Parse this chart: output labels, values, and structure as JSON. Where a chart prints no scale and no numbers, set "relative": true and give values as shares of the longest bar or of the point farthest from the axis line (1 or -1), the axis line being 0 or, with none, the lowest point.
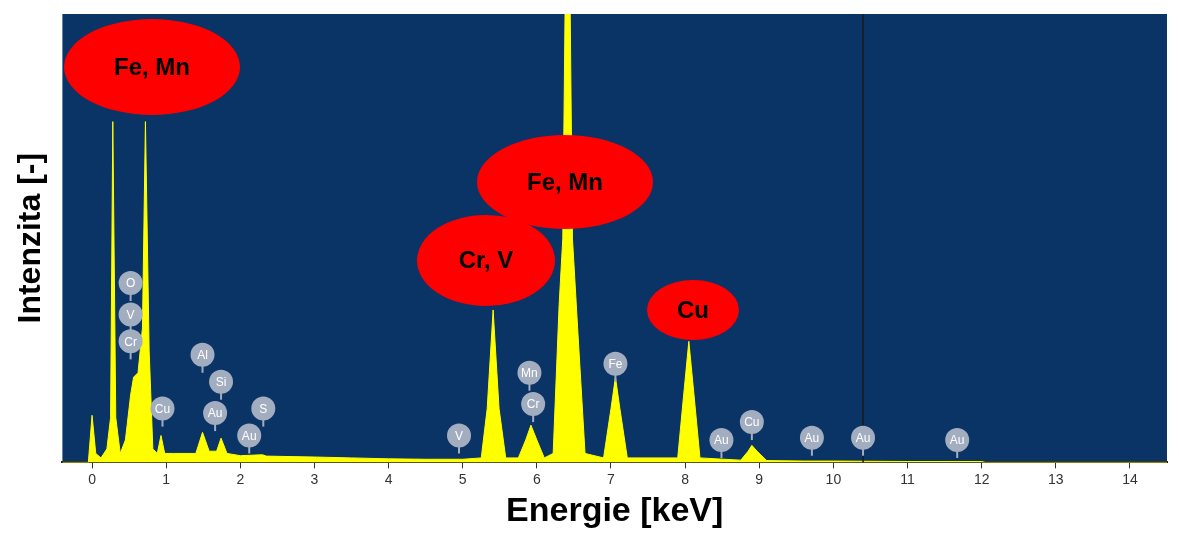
{
  "chart_data": {
    "type": "area",
    "relative": true,
    "xlabel": "Energie [keV]",
    "ylabel": "Intenzita [-]",
    "xlim": [
      -0.4,
      14.5
    ],
    "xticks": [
      0,
      1,
      2,
      3,
      4,
      5,
      6,
      7,
      8,
      9,
      10,
      11,
      12,
      13,
      14
    ],
    "grid": false,
    "legend": false,
    "x": [
      -0.4,
      -0.05,
      0,
      0.05,
      0.12,
      0.2,
      0.25,
      0.28,
      0.32,
      0.38,
      0.45,
      0.52,
      0.56,
      0.62,
      0.68,
      0.72,
      0.77,
      0.82,
      0.88,
      0.93,
      0.98,
      1.1,
      1.4,
      1.49,
      1.58,
      1.68,
      1.74,
      1.82,
      2.0,
      2.3,
      2.35,
      3.0,
      3.5,
      4.0,
      4.5,
      5.0,
      5.25,
      5.33,
      5.41,
      5.49,
      5.58,
      5.75,
      5.85,
      5.92,
      6.0,
      6.1,
      6.22,
      6.3,
      6.35,
      6.38,
      6.45,
      6.48,
      6.55,
      6.65,
      6.9,
      7.0,
      7.06,
      7.12,
      7.22,
      7.9,
      7.98,
      8.05,
      8.12,
      8.2,
      8.75,
      8.85,
      8.9,
      8.97,
      9.1,
      9.6,
      10,
      11,
      12,
      12.05,
      14.5
    ],
    "series": [
      {
        "color": "#ffff00",
        "values": [
          0,
          0,
          0.105,
          0.02,
          0.01,
          0.03,
          0.1,
          0.76,
          0.1,
          0.02,
          0.05,
          0.15,
          0.19,
          0.2,
          0.3,
          0.76,
          0.25,
          0.03,
          0.02,
          0.06,
          0.02,
          0.02,
          0.02,
          0.067,
          0.025,
          0.025,
          0.054,
          0.02,
          0.015,
          0.017,
          0.014,
          0.012,
          0.01,
          0.008,
          0.007,
          0.007,
          0.01,
          0.12,
          0.34,
          0.12,
          0.01,
          0.01,
          0.05,
          0.083,
          0.05,
          0.01,
          0.02,
          0.35,
          0.5,
          1,
          1,
          0.5,
          0.3,
          0.02,
          0.01,
          0.12,
          0.19,
          0.12,
          0.01,
          0.01,
          0.15,
          0.27,
          0.15,
          0.01,
          0.005,
          0.025,
          0.038,
          0.025,
          0.004,
          0.003,
          0.003,
          0.002,
          0.002,
          0,
          0
        ]
      }
    ],
    "ref_lines": [
      {
        "axis": "x",
        "value": 10.4,
        "color": "#1a1a1a"
      }
    ],
    "annotations": [
      "Fe, Mn",
      "Fe, Mn",
      "Cr, V",
      "Cu",
      {
        "text": "O",
        "x": 0.52,
        "y": 0.4
      },
      {
        "text": "V",
        "x": 0.52,
        "y": 0.33
      },
      {
        "text": "Cr",
        "x": 0.52,
        "y": 0.27
      },
      {
        "text": "Cu",
        "x": 0.95,
        "y": 0.12
      },
      {
        "text": "Al",
        "x": 1.49,
        "y": 0.24
      },
      {
        "text": "Si",
        "x": 1.74,
        "y": 0.18
      },
      {
        "text": "Au",
        "x": 1.66,
        "y": 0.11
      },
      {
        "text": "Au",
        "x": 2.12,
        "y": 0.06
      },
      {
        "text": "S",
        "x": 2.31,
        "y": 0.12
      },
      {
        "text": "V",
        "x": 4.95,
        "y": 0.06
      },
      {
        "text": "Mn",
        "x": 5.9,
        "y": 0.2
      },
      {
        "text": "Cr",
        "x": 5.95,
        "y": 0.13
      },
      {
        "text": "Fe",
        "x": 7.06,
        "y": 0.22
      },
      {
        "text": "Au",
        "x": 8.49,
        "y": 0.05
      },
      {
        "text": "Cu",
        "x": 8.9,
        "y": 0.09
      },
      {
        "text": "Au",
        "x": 9.71,
        "y": 0.055
      },
      {
        "text": "Au",
        "x": 10.4,
        "y": 0.055
      },
      {
        "text": "Au",
        "x": 11.67,
        "y": 0.05
      }
    ]
  }
}
